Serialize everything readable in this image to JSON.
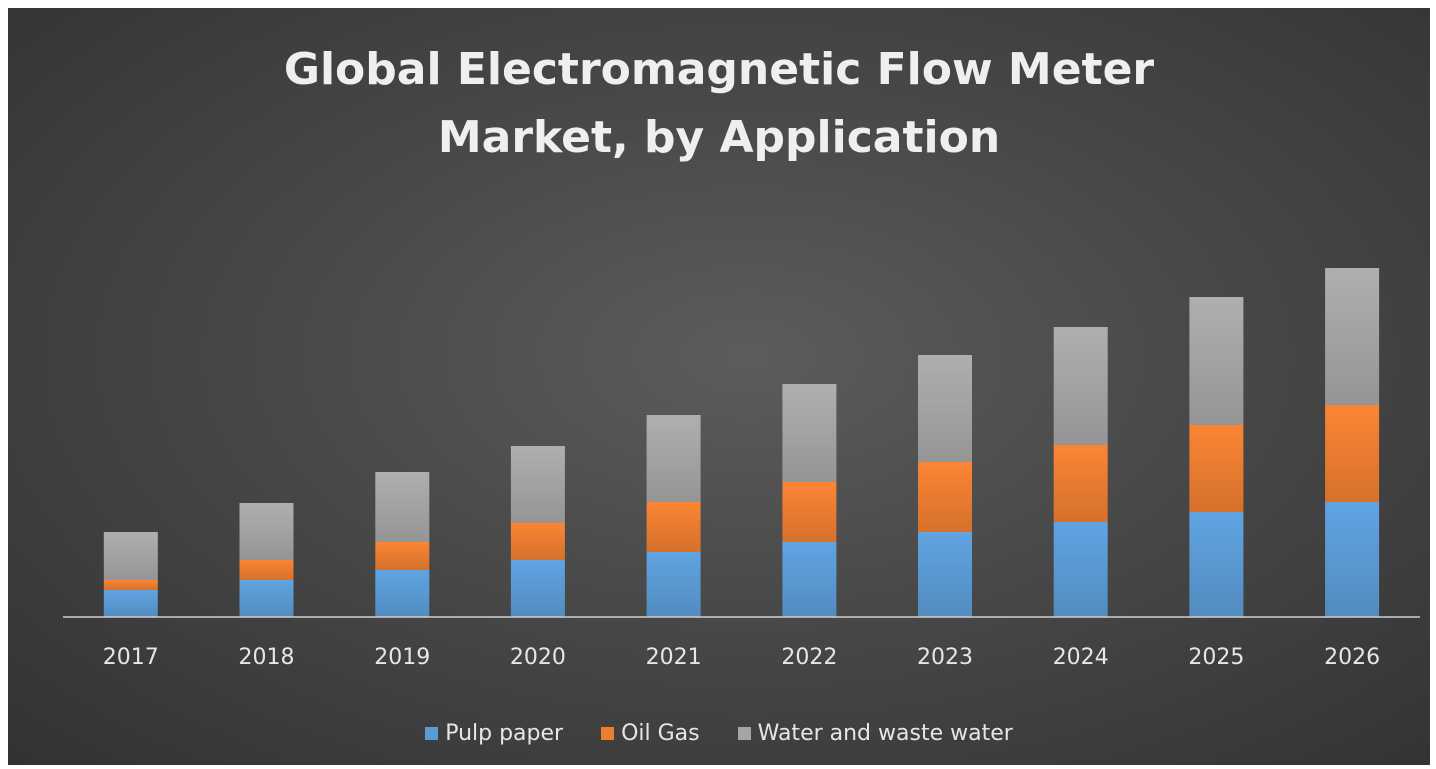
{
  "chart_data": {
    "type": "bar",
    "stacked": true,
    "title": "Global Electromagnetic Flow Meter\nMarket, by Application",
    "xlabel": "",
    "ylabel": "",
    "categories": [
      "2017",
      "2018",
      "2019",
      "2020",
      "2021",
      "2022",
      "2023",
      "2024",
      "2025",
      "2026"
    ],
    "series": [
      {
        "name": "Pulp paper",
        "color": "#5b9bd5",
        "values": [
          2.7,
          3.7,
          4.7,
          5.7,
          6.5,
          7.5,
          8.5,
          9.5,
          10.5,
          11.5
        ]
      },
      {
        "name": "Oil Gas",
        "color": "#ed7d31",
        "values": [
          1.0,
          2.0,
          2.8,
          3.7,
          5.0,
          6.0,
          7.0,
          7.7,
          8.7,
          9.7
        ]
      },
      {
        "name": "Water and waste water",
        "color": "#a5a5a5",
        "values": [
          4.8,
          5.7,
          7.0,
          7.7,
          8.7,
          9.8,
          10.7,
          11.8,
          12.8,
          13.7
        ]
      }
    ],
    "ylim": [
      0,
      40
    ],
    "grid": false,
    "legend_position": "bottom"
  }
}
